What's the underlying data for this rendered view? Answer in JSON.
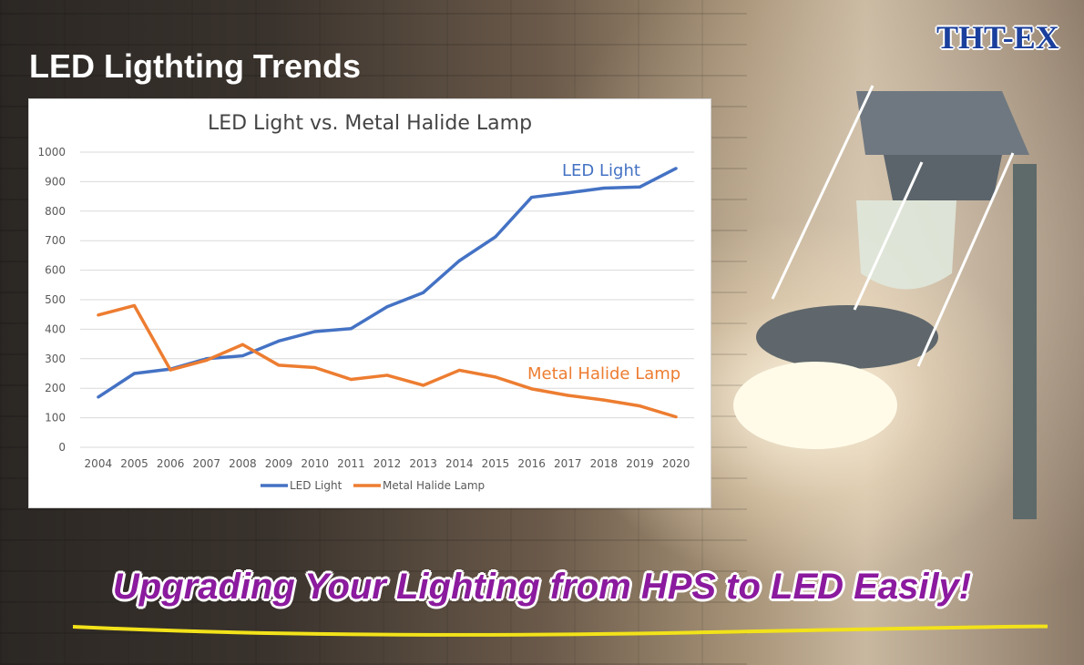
{
  "page": {
    "title": "LED Ligthting Trends",
    "brand": "THT-EX",
    "tagline": "Upgrading Your Lighting from HPS to LED Easily!"
  },
  "colors": {
    "led": "#4472c4",
    "halide": "#ed7d31",
    "brand": "#1a3f9c",
    "tagline": "#8b1a9e",
    "underline": "#f2e21a"
  },
  "chart_data": {
    "type": "line",
    "title": "LED Light vs. Metal Halide Lamp",
    "categories": [
      "2004",
      "2005",
      "2006",
      "2007",
      "2008",
      "2009",
      "2010",
      "2011",
      "2012",
      "2013",
      "2014",
      "2015",
      "2016",
      "2017",
      "2018",
      "2019",
      "2020"
    ],
    "series": [
      {
        "name": "LED Light",
        "values": [
          170,
          250,
          265,
          300,
          310,
          360,
          392,
          402,
          476,
          524,
          632,
          713,
          847,
          862,
          878,
          882,
          945
        ]
      },
      {
        "name": "Metal Halide Lamp",
        "values": [
          448,
          480,
          262,
          295,
          348,
          278,
          270,
          230,
          244,
          210,
          261,
          238,
          198,
          176,
          160,
          140,
          103
        ]
      }
    ],
    "ylim": [
      0,
      1000
    ],
    "yticks": [
      0,
      100,
      200,
      300,
      400,
      500,
      600,
      700,
      800,
      900,
      1000
    ],
    "grid": true,
    "legend": "bottom",
    "annotations": [
      "LED Light",
      "Metal Halide Lamp"
    ]
  }
}
